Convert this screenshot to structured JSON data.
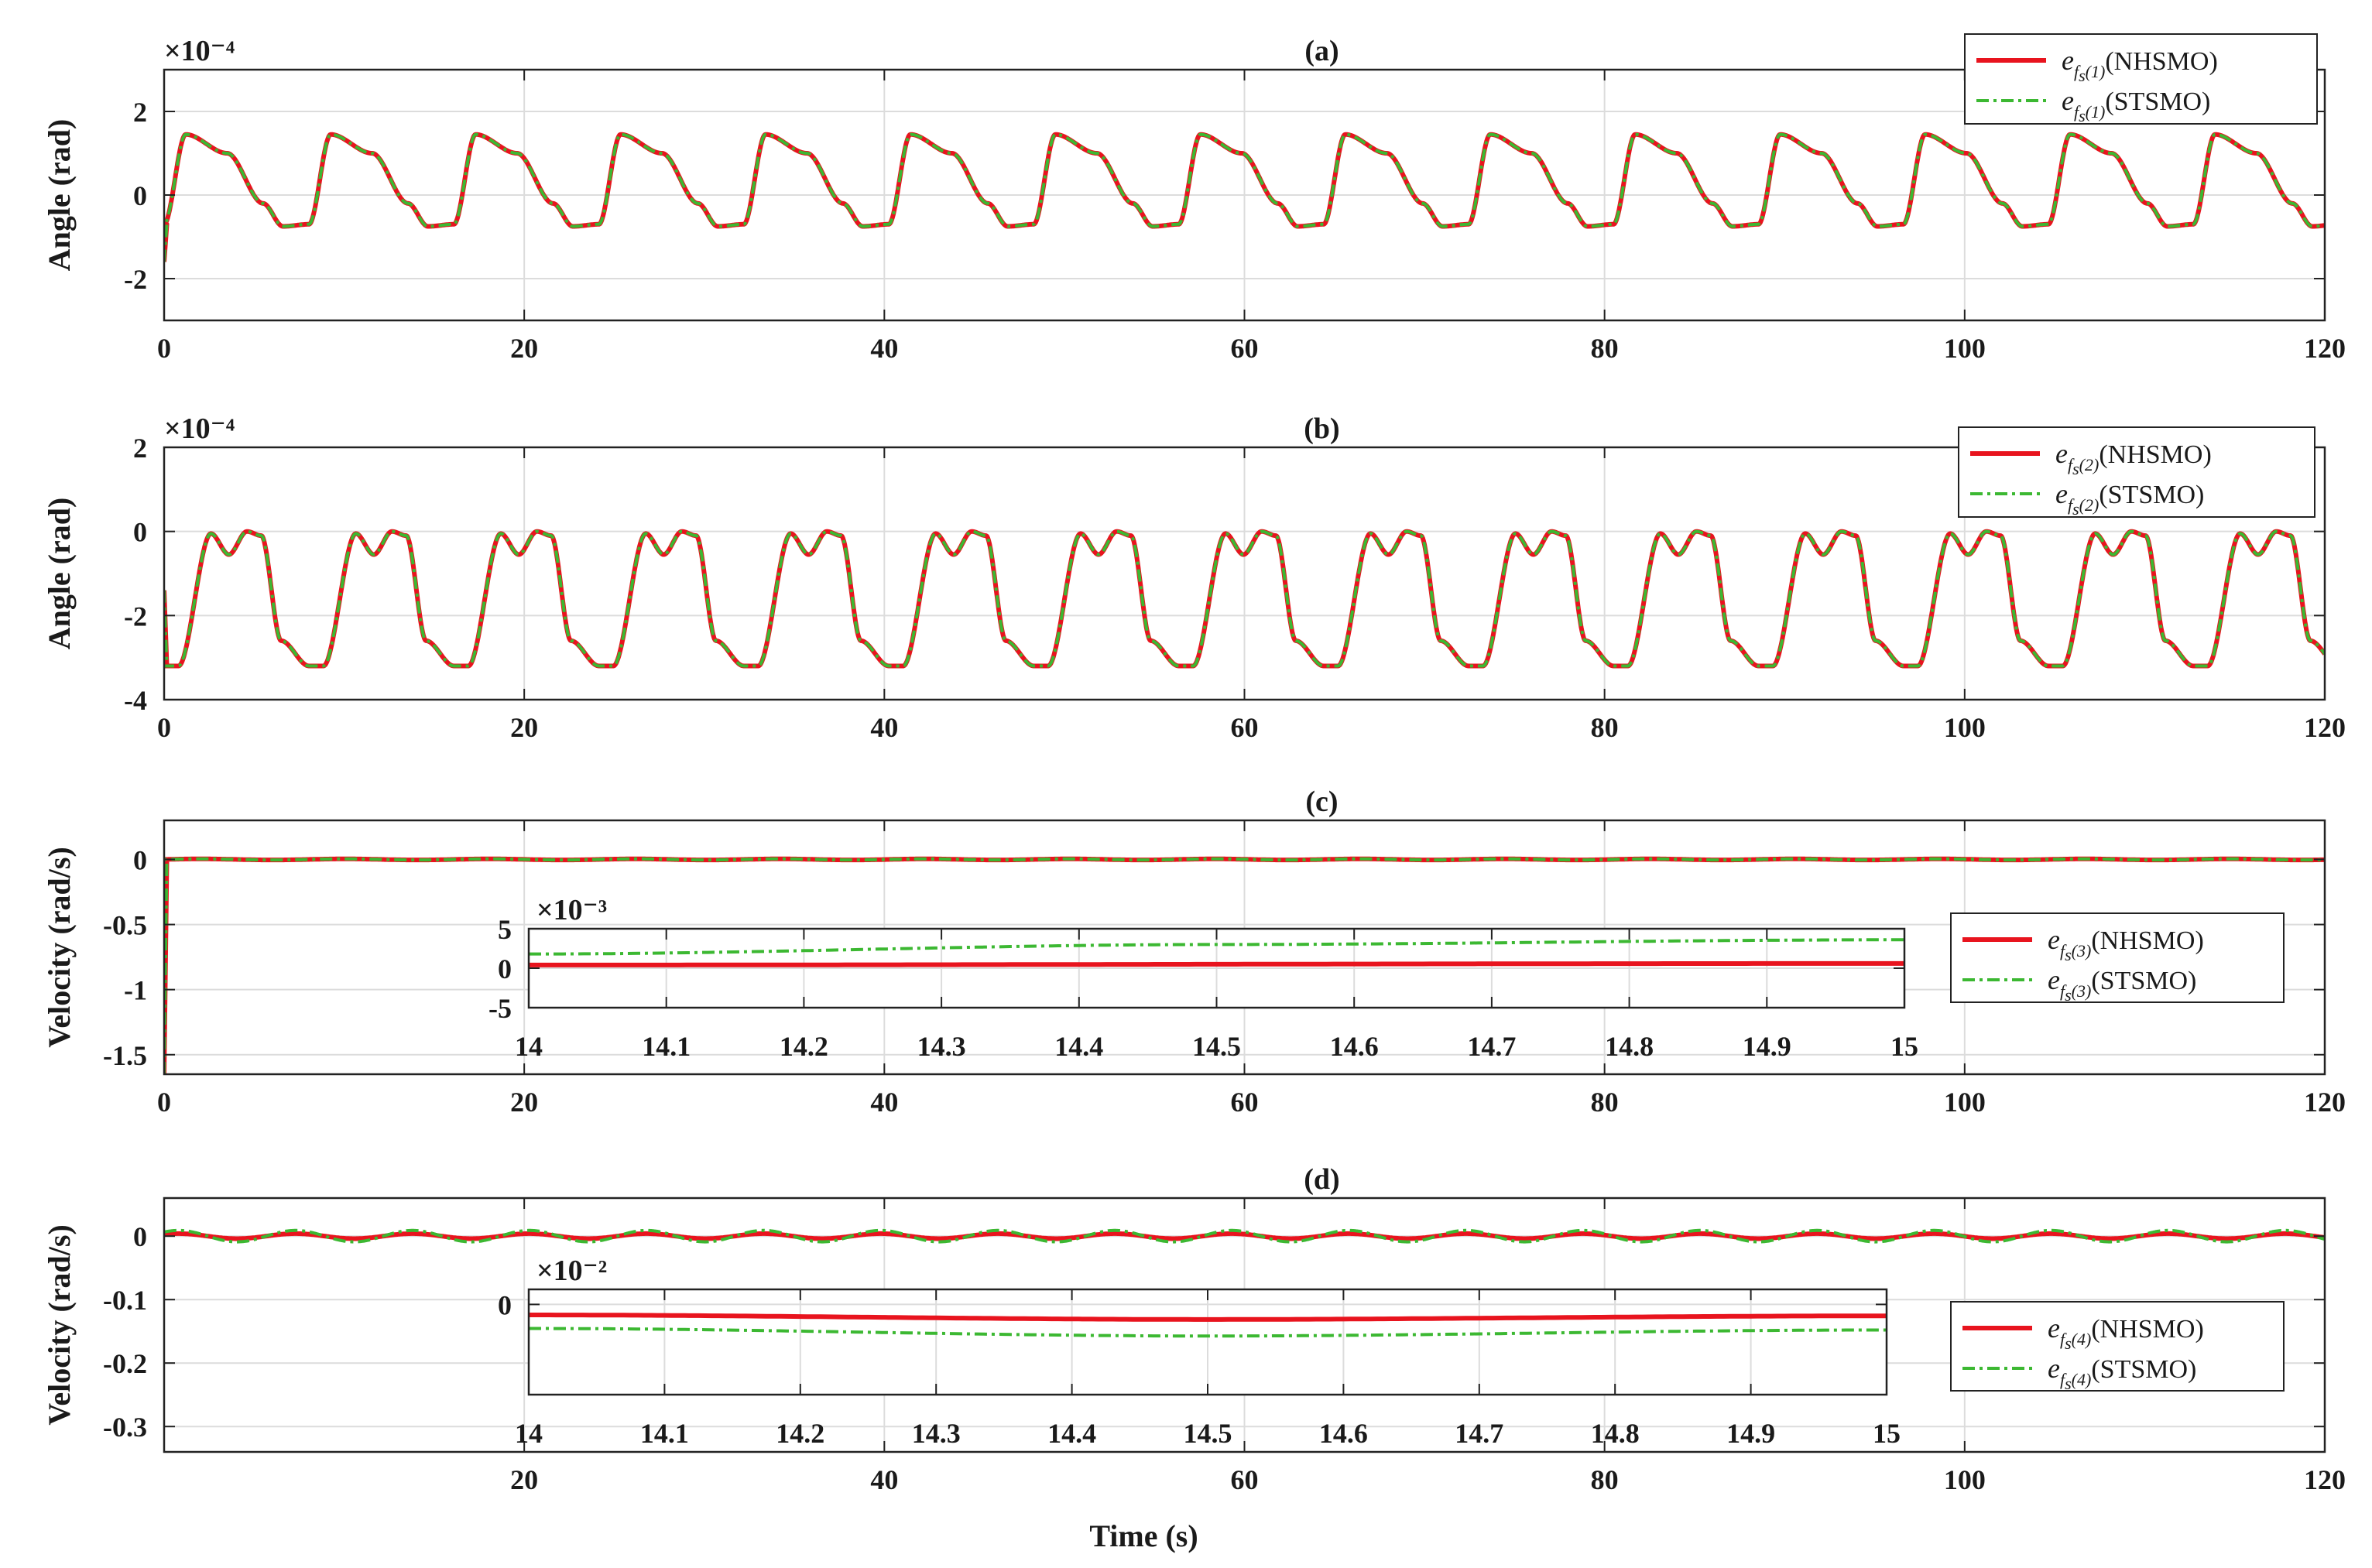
{
  "chart_data": [
    {
      "type": "line",
      "panel": "a",
      "title": "(a)",
      "xlabel": "",
      "ylabel": "Angle (rad)",
      "y_exponent": "×10⁻⁴",
      "xlim": [
        0,
        120
      ],
      "ylim": [
        -3,
        3
      ],
      "xticks": [
        0,
        20,
        40,
        60,
        80,
        100,
        120
      ],
      "yticks": [
        -2,
        0,
        2
      ],
      "grid": true,
      "legend_position": "top-right",
      "period": 8.05,
      "series": [
        {
          "name": "NHSMO",
          "legend_sub": "(1)",
          "color": "#e8141e",
          "dash": "solid"
        },
        {
          "name": "STSMO",
          "legend_sub": "(1)",
          "color": "#3cb832",
          "dash": "dashdot"
        }
      ],
      "waveform_one_period": {
        "x": [
          0,
          1.2,
          3.5,
          5.5,
          6.6,
          8.05
        ],
        "y": [
          -0.7,
          1.45,
          1.0,
          -0.2,
          -0.75,
          -0.7
        ]
      },
      "initial_spike": -1.6
    },
    {
      "type": "line",
      "panel": "b",
      "title": "(b)",
      "xlabel": "",
      "ylabel": "Angle (rad)",
      "y_exponent": "×10⁻⁴",
      "xlim": [
        0,
        120
      ],
      "ylim": [
        -4,
        2
      ],
      "xticks": [
        0,
        20,
        40,
        60,
        80,
        100,
        120
      ],
      "yticks": [
        -4,
        -2,
        0,
        2
      ],
      "grid": true,
      "legend_position": "top-right",
      "period": 8.05,
      "series": [
        {
          "name": "NHSMO",
          "legend_sub": "(2)",
          "color": "#e8141e",
          "dash": "solid"
        },
        {
          "name": "STSMO",
          "legend_sub": "(2)",
          "color": "#3cb832",
          "dash": "dashdot"
        }
      ],
      "waveform_one_period": {
        "x": [
          0,
          0.8,
          2.6,
          3.6,
          4.6,
          5.4,
          6.5,
          8.05
        ],
        "y": [
          -3.2,
          -3.2,
          -0.05,
          -0.55,
          0,
          -0.1,
          -2.6,
          -3.2
        ]
      },
      "initial_spike": -1.4
    },
    {
      "type": "line",
      "panel": "c",
      "title": "(c)",
      "xlabel": "",
      "ylabel": "Velocity (rad/s)",
      "xlim": [
        0,
        120
      ],
      "ylim": [
        -1.65,
        0.3
      ],
      "xticks": [
        0,
        20,
        40,
        60,
        80,
        100,
        120
      ],
      "yticks": [
        -1.5,
        -1,
        -0.5,
        0
      ],
      "ytick_labels": [
        "-1.5",
        "-1",
        "-0.5",
        "0"
      ],
      "grid": true,
      "series": [
        {
          "name": "NHSMO",
          "legend_sub": "(3)",
          "color": "#e8141e",
          "dash": "solid"
        },
        {
          "name": "STSMO",
          "legend_sub": "(3)",
          "color": "#3cb832",
          "dash": "dashdot"
        }
      ],
      "initial_spike": -1.65,
      "inset": {
        "y_exponent": "×10⁻³",
        "xlim": [
          14,
          15
        ],
        "ylim": [
          -5,
          5
        ],
        "xticks": [
          14,
          14.1,
          14.2,
          14.3,
          14.4,
          14.5,
          14.6,
          14.7,
          14.8,
          14.9,
          15
        ],
        "yticks": [
          -5,
          0,
          5
        ],
        "series_values": [
          {
            "name": "NHSMO",
            "x": [
              14,
              15
            ],
            "y": [
              0.4,
              0.6
            ]
          },
          {
            "name": "STSMO",
            "x": [
              14,
              14.5,
              15
            ],
            "y": [
              1.8,
              3.0,
              3.6
            ]
          }
        ]
      }
    },
    {
      "type": "line",
      "panel": "d",
      "title": "(d)",
      "xlabel": "Time (s)",
      "ylabel": "Velocity (rad/s)",
      "xlim": [
        0,
        120
      ],
      "ylim": [
        -0.34,
        0.06
      ],
      "xticks": [
        20,
        40,
        60,
        80,
        100,
        120
      ],
      "yticks": [
        -0.3,
        -0.2,
        -0.1,
        0
      ],
      "ytick_labels": [
        "-0.3",
        "-0.2",
        "-0.1",
        "0"
      ],
      "grid": true,
      "series": [
        {
          "name": "NHSMO",
          "legend_sub": "(4)",
          "color": "#e8141e",
          "dash": "solid",
          "amplitude": 0.004
        },
        {
          "name": "STSMO",
          "legend_sub": "(4)",
          "color": "#3cb832",
          "dash": "dashdot",
          "amplitude": 0.009
        }
      ],
      "period": 6.5,
      "inset": {
        "y_exponent": "×10⁻²",
        "xlim": [
          14,
          15
        ],
        "ylim": [
          -3,
          0.5
        ],
        "xticks": [
          14,
          14.1,
          14.2,
          14.3,
          14.4,
          14.5,
          14.6,
          14.7,
          14.8,
          14.9,
          15
        ],
        "yticks": [
          0
        ],
        "series_values": [
          {
            "name": "NHSMO",
            "x": [
              14,
              14.5,
              15
            ],
            "y": [
              -0.35,
              -0.5,
              -0.38
            ]
          },
          {
            "name": "STSMO",
            "x": [
              14,
              14.5,
              15
            ],
            "y": [
              -0.8,
              -1.05,
              -0.85
            ]
          }
        ]
      }
    }
  ],
  "legend_prefix": "e",
  "legend_sub_letter": "f",
  "legend_sub_letter2": "s"
}
